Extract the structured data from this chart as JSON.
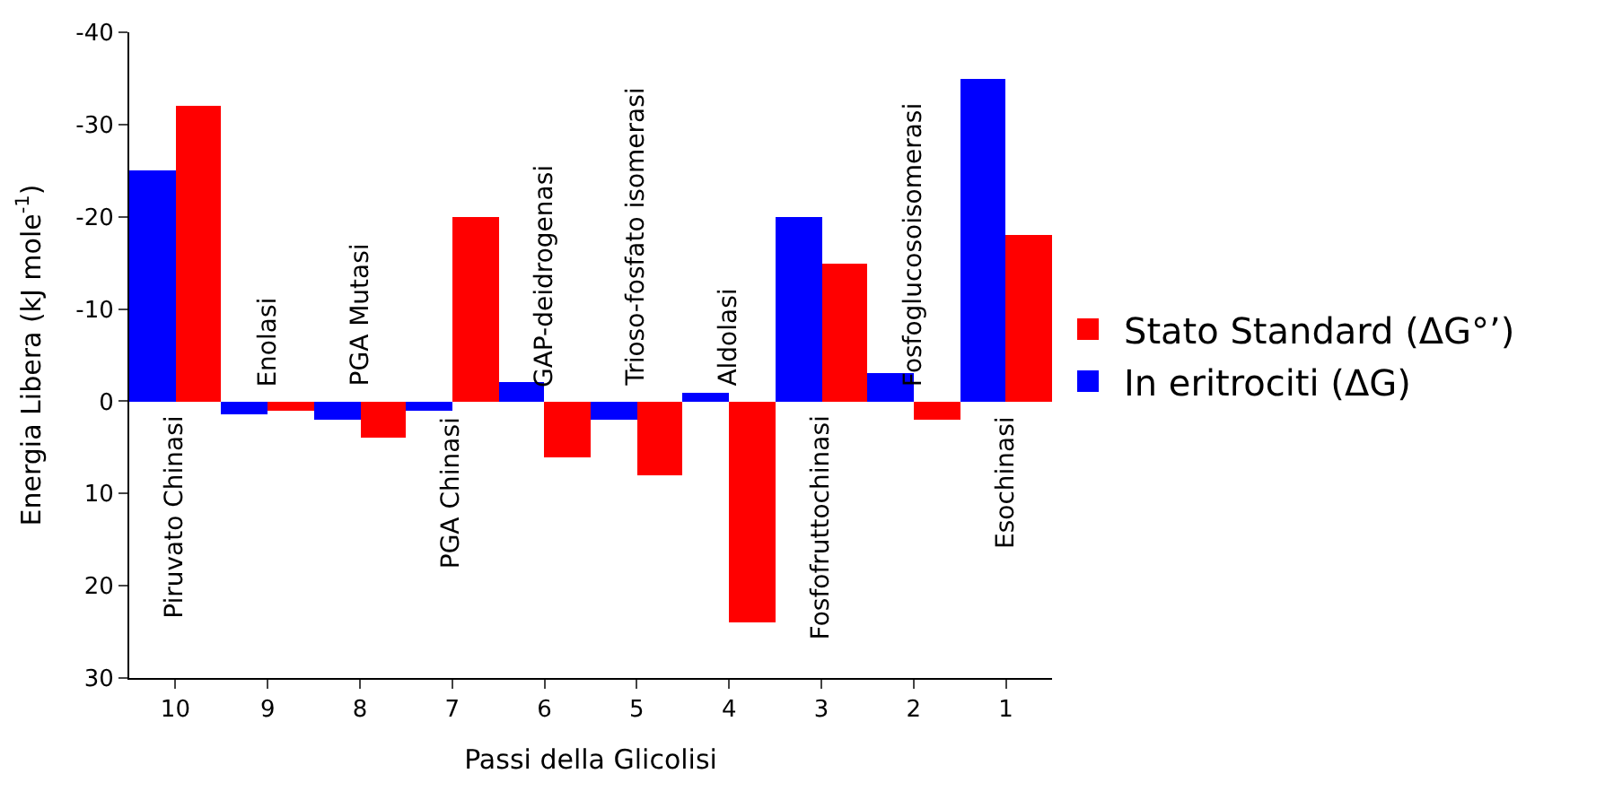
{
  "chart_data": {
    "type": "bar",
    "xlabel": "Passi della Glicolisi",
    "ylabel": "Energia Libera (kJ mole$^{-1}$)",
    "categories": [
      "10",
      "9",
      "8",
      "7",
      "6",
      "5",
      "4",
      "3",
      "2",
      "1"
    ],
    "series": [
      {
        "name": "In eritrociti (ΔG)",
        "color": "#0000ff",
        "values": [
          -25,
          1.5,
          2,
          1,
          -2,
          2,
          -1,
          -20,
          -3,
          -35
        ]
      },
      {
        "name": "Stato Standard (ΔG°’)",
        "color": "#ff0000",
        "values": [
          -32,
          1,
          4,
          -20,
          6,
          8,
          24,
          -15,
          2,
          -18
        ]
      }
    ],
    "ylim": [
      30,
      -40
    ],
    "yticks": [
      -40,
      -30,
      -20,
      -10,
      0,
      10,
      20,
      30
    ],
    "legend": "right",
    "annotations": [
      "Piruvato Chinasi",
      "Enolasi",
      "PGA Mutasi",
      "PGA Chinasi",
      "GAP-deidrogenasi",
      "Trioso-fosfato isomerasi",
      "Aldolasi",
      "Fosfofruttochinasi",
      "Fosfoglucosoisomerasi",
      "Esochinasi"
    ]
  }
}
